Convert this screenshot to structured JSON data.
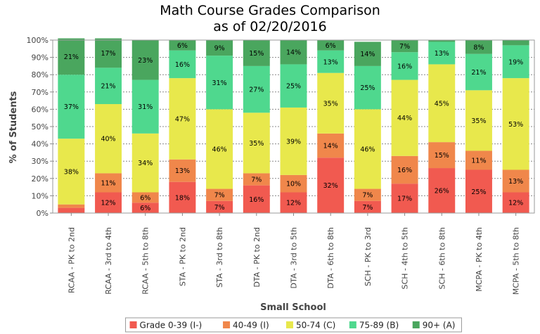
{
  "chart_data": {
    "type": "bar",
    "stacked": true,
    "title": "Math Course Grades Comparison",
    "subtitle": "as of 02/20/2016",
    "xlabel": "Small School",
    "ylabel": "% of Students",
    "ylim": [
      0,
      100
    ],
    "yticks": [
      "0%",
      "10%",
      "20%",
      "30%",
      "40%",
      "50%",
      "60%",
      "70%",
      "80%",
      "90%",
      "100%"
    ],
    "grid": true,
    "legend_position": "bottom",
    "categories": [
      "RCAA - PK to 2nd",
      "RCAA - 3rd to 4th",
      "RCAA - 5th to 8th",
      "STA - PK to 2nd",
      "STA - 3rd to 8th",
      "DTA - PK to 2nd",
      "DTA - 3rd to 5th",
      "DTA - 6th to 8th",
      "SCH - PK to 3rd",
      "SCH - 4th to 5th",
      "SCH - 6th to 8th",
      "MCPA - PK to 4th",
      "MCPA - 5th to 8th"
    ],
    "series": [
      {
        "name": "Grade 0-39 (I-)",
        "color": "#f15a50",
        "values": [
          3,
          12,
          6,
          18,
          7,
          16,
          12,
          32,
          7,
          17,
          26,
          25,
          12
        ],
        "labels": [
          "",
          "12%",
          "6%",
          "18%",
          "7%",
          "16%",
          "12%",
          "32%",
          "7%",
          "17%",
          "26%",
          "25%",
          "12%"
        ]
      },
      {
        "name": "40-49 (I)",
        "color": "#f0874b",
        "values": [
          2,
          11,
          6,
          13,
          7,
          7,
          10,
          14,
          7,
          16,
          15,
          11,
          13
        ],
        "labels": [
          "",
          "11%",
          "6%",
          "13%",
          "7%",
          "7%",
          "10%",
          "14%",
          "7%",
          "16%",
          "15%",
          "11%",
          "13%"
        ]
      },
      {
        "name": "50-74 (C)",
        "color": "#e8e84c",
        "values": [
          38,
          40,
          34,
          47,
          46,
          35,
          39,
          35,
          46,
          44,
          45,
          35,
          53
        ],
        "labels": [
          "38%",
          "40%",
          "34%",
          "47%",
          "46%",
          "35%",
          "39%",
          "35%",
          "46%",
          "44%",
          "45%",
          "35%",
          "53%"
        ]
      },
      {
        "name": "75-89 (B)",
        "color": "#4fd88e",
        "values": [
          37,
          21,
          31,
          16,
          31,
          27,
          25,
          13,
          25,
          16,
          13,
          21,
          19
        ],
        "labels": [
          "37%",
          "21%",
          "31%",
          "16%",
          "31%",
          "27%",
          "25%",
          "13%",
          "25%",
          "16%",
          "13%",
          "21%",
          "19%"
        ]
      },
      {
        "name": "90+ (A)",
        "color": "#4aa65e",
        "values": [
          21,
          17,
          23,
          6,
          9,
          15,
          14,
          6,
          14,
          7,
          1,
          8,
          3
        ],
        "labels": [
          "21%",
          "17%",
          "23%",
          "6%",
          "9%",
          "15%",
          "14%",
          "6%",
          "14%",
          "7%",
          "",
          "8%",
          ""
        ]
      }
    ]
  }
}
